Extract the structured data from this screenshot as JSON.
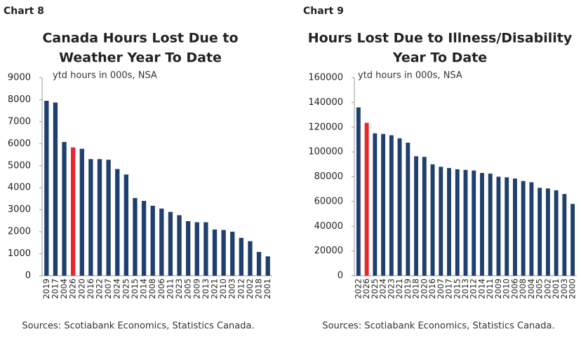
{
  "chart_data": [
    {
      "type": "bar",
      "label": "Chart 8",
      "title": [
        "Canada Hours Lost Due to",
        "Weather  Year To Date"
      ],
      "annotation": "ytd hours in 000s, NSA",
      "source": "Sources: Scotiabank Economics, Statistics Canada.",
      "categories": [
        "2019",
        "2017",
        "2004",
        "2026",
        "2020",
        "2016",
        "2022",
        "2007",
        "2024",
        "2025",
        "2015",
        "2014",
        "2008",
        "2006",
        "2011",
        "2023",
        "2005",
        "2009",
        "2013",
        "2021",
        "2010",
        "2003",
        "2012",
        "2002",
        "2018",
        "2001"
      ],
      "values": [
        7950,
        7870,
        6080,
        5830,
        5770,
        5300,
        5300,
        5270,
        4850,
        4600,
        3530,
        3400,
        3180,
        3050,
        2900,
        2750,
        2480,
        2430,
        2430,
        2100,
        2080,
        2000,
        1720,
        1570,
        1080,
        880
      ],
      "color": "#1f3f6e",
      "highlight_category": "2026",
      "highlight_color": "#e8262b",
      "ylim": [
        0,
        9000
      ],
      "yticks": [
        0,
        1000,
        2000,
        3000,
        4000,
        5000,
        6000,
        7000,
        8000,
        9000
      ]
    },
    {
      "type": "bar",
      "label": "Chart 9",
      "title": [
        "Hours Lost Due to Illness/Disability",
        "Year To Date"
      ],
      "annotation": "ytd hours in 000s, NSA",
      "source": "Sources: Scotiabank Economics, Statistics Canada.",
      "categories": [
        "2022",
        "2026",
        "2025",
        "2024",
        "2023",
        "2021",
        "2019",
        "2018",
        "2020",
        "2016",
        "2007",
        "2017",
        "2015",
        "2013",
        "2012",
        "2014",
        "2011",
        "2009",
        "2010",
        "2006",
        "2008",
        "2004",
        "2005",
        "2002",
        "2001",
        "2003",
        "2000"
      ],
      "values": [
        136000,
        123500,
        115000,
        114500,
        113500,
        111000,
        107500,
        96500,
        96000,
        90000,
        88000,
        87000,
        86000,
        85500,
        85000,
        83000,
        82500,
        80000,
        79500,
        78500,
        76500,
        75500,
        71000,
        70500,
        69000,
        66000,
        58000
      ],
      "color": "#1f3f6e",
      "highlight_category": "2026",
      "highlight_color": "#e8262b",
      "ylim": [
        0,
        160000
      ],
      "yticks": [
        0,
        20000,
        40000,
        60000,
        80000,
        100000,
        120000,
        140000,
        160000
      ]
    }
  ]
}
